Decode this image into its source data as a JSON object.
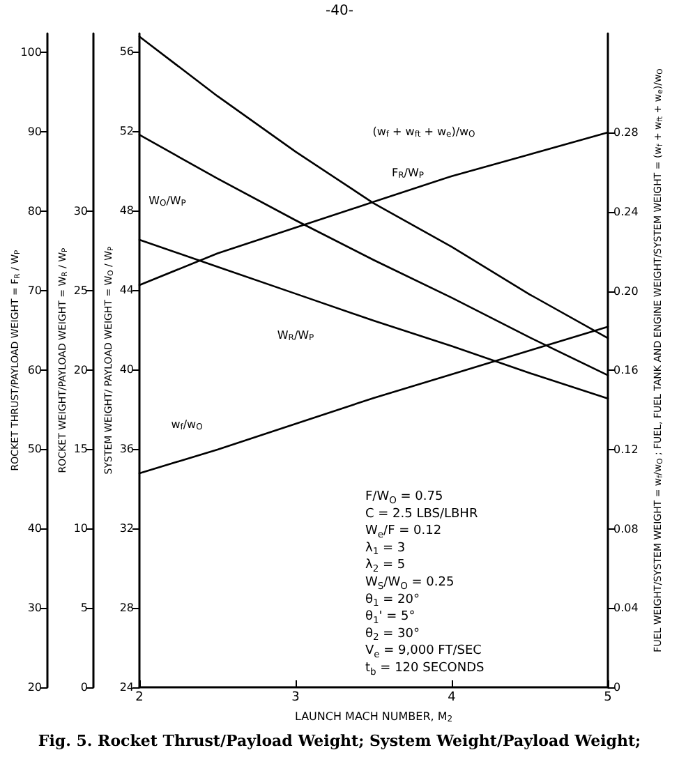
{
  "chart_data": [
    {
      "type": "line",
      "title": "Fig. 5. Rocket Thrust/Payload Weight; System Weight/Payload Weight;",
      "annotations": [
        "-40-",
        "F/W$_{O}$ = 0.75",
        "C = 2.5 LBS/LBHR",
        "W$_{e}$/F = 0.12",
        "λ$_{1}$ = 3",
        "λ$_{2}$ = 5",
        "W$_{S}$/W$_{O}$ = 0.25",
        "θ$_{1}$ = 20°",
        "θ$_{1}$' = 5°",
        "θ$_{2}$ = 30°",
        "V$_{e}$ = 9,000 FT/SEC",
        "t$_{b}$ = 120 SECONDS"
      ],
      "xlabel": "LAUNCH MACH NUMBER, M$_{2}$",
      "ylabel": "ROCKET THRUST/PAYLOAD WEIGHT = F$_{R}$ / W$_{P}$",
      "y2label": "ROCKET WEIGHT/PAYLOAD WEIGHT = W$_{R}$ / W$_{P}$",
      "y3label": "SYSTEM WEIGHT/ PAYLOAD WEIGHT = W$_{O}$ / W$_{P}$",
      "x": [
        2,
        2.5,
        3,
        3.5,
        4,
        4.5,
        5
      ],
      "xlim": [
        2,
        5
      ],
      "xticks": [
        2,
        3,
        4,
        5
      ],
      "ylim": [
        20,
        102.4
      ],
      "yticks": [
        20,
        30,
        40,
        50,
        60,
        70,
        80,
        90,
        100
      ],
      "y2lim": [
        0,
        41.2
      ],
      "y2ticks": [
        0,
        5,
        10,
        15,
        20,
        25,
        30
      ],
      "y3lim": [
        24,
        56.9
      ],
      "y3ticks": [
        24,
        28,
        32,
        36,
        40,
        44,
        48,
        52,
        56
      ],
      "marker": "none",
      "line_style": "solid",
      "series": [
        {
          "name": "F$_{R}$/W$_{P}$",
          "color": "#000000",
          "axis": "y",
          "values": [
            102,
            94.5,
            87.5,
            81,
            75.5,
            69.5,
            64
          ]
        },
        {
          "name": "W$_{O}$/W$_{P}$",
          "color": "#000000",
          "axis": "y3",
          "values": [
            51.8,
            49.6,
            47.5,
            45.5,
            43.6,
            41.6,
            39.7
          ]
        },
        {
          "name": "W$_{R}$/W$_{P}$",
          "color": "#000000",
          "axis": "y2",
          "values": [
            28.2,
            26.5,
            24.8,
            23.1,
            21.5,
            19.8,
            18.2
          ]
        }
      ]
    },
    {
      "type": "line",
      "ylabel": "FUEL WEIGHT/SYSTEM WEIGHT = w$_{f}$/w$_{O}$ ; FUEL, FUEL TANK AND ENGINE WEIGHT/SYSTEM WEIGHT = (w$_{f}$ + w$_{ft}$ + w$_{e}$)/w$_{O}$",
      "x": [
        2,
        2.5,
        3,
        3.5,
        4,
        4.5,
        5
      ],
      "xlim": [
        2,
        5
      ],
      "ylim": [
        0,
        0.33
      ],
      "yticks": [
        0,
        0.04,
        0.08,
        0.12,
        0.16,
        {
          "value": 0.2,
          "label": "0.20"
        },
        0.24,
        0.28
      ],
      "tick_labels": "y",
      "marker": "none",
      "line_style": "solid",
      "series": [
        {
          "name": "w$_{f}$/w$_{O}$",
          "color": "#000000",
          "values": [
            0.108,
            0.12,
            0.133,
            0.146,
            0.158,
            0.17,
            0.182
          ]
        },
        {
          "name": "(w$_{f}$ + w$_{ft}$ + w$_{e}$)/w$_{O}$",
          "color": "#000000",
          "values": [
            0.203,
            0.219,
            0.232,
            0.245,
            0.258,
            0.269,
            0.28
          ]
        }
      ]
    }
  ]
}
